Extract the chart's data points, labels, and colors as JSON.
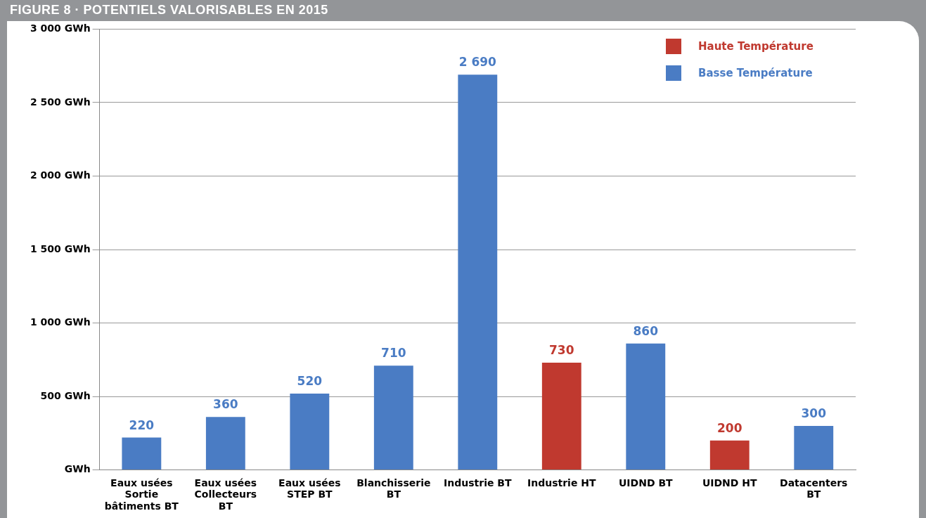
{
  "chart_data": {
    "type": "bar",
    "title": "FIGURE 8 · POTENTIELS VALORISABLES EN 2015",
    "categories": [
      "Eaux usées\nSortie\nbâtiments BT",
      "Eaux usées\nCollecteurs\nBT",
      "Eaux usées\nSTEP BT",
      "Blanchisserie\nBT",
      "Industrie BT",
      "Industrie HT",
      "UIDND BT",
      "UIDND HT",
      "Datacenters\nBT"
    ],
    "series": [
      {
        "name": "Haute Température",
        "color": "#c0392f",
        "values": [
          null,
          null,
          null,
          null,
          null,
          730,
          null,
          200,
          null
        ]
      },
      {
        "name": "Basse Température",
        "color": "#4a7cc4",
        "values": [
          220,
          360,
          520,
          710,
          2690,
          null,
          860,
          null,
          300
        ]
      }
    ],
    "ylim": [
      0,
      3000
    ],
    "yticks": [
      {
        "value": 0,
        "label": "GWh"
      },
      {
        "value": 500,
        "label": "500 GWh"
      },
      {
        "value": 1000,
        "label": "1 000 GWh"
      },
      {
        "value": 1500,
        "label": "1 500 GWh"
      },
      {
        "value": 2000,
        "label": "2 000 GWh"
      },
      {
        "value": 2500,
        "label": "2 500 GWh"
      },
      {
        "value": 3000,
        "label": "3 000 GWh"
      }
    ],
    "grid": "y",
    "legend": "top right",
    "data_labels": true
  }
}
